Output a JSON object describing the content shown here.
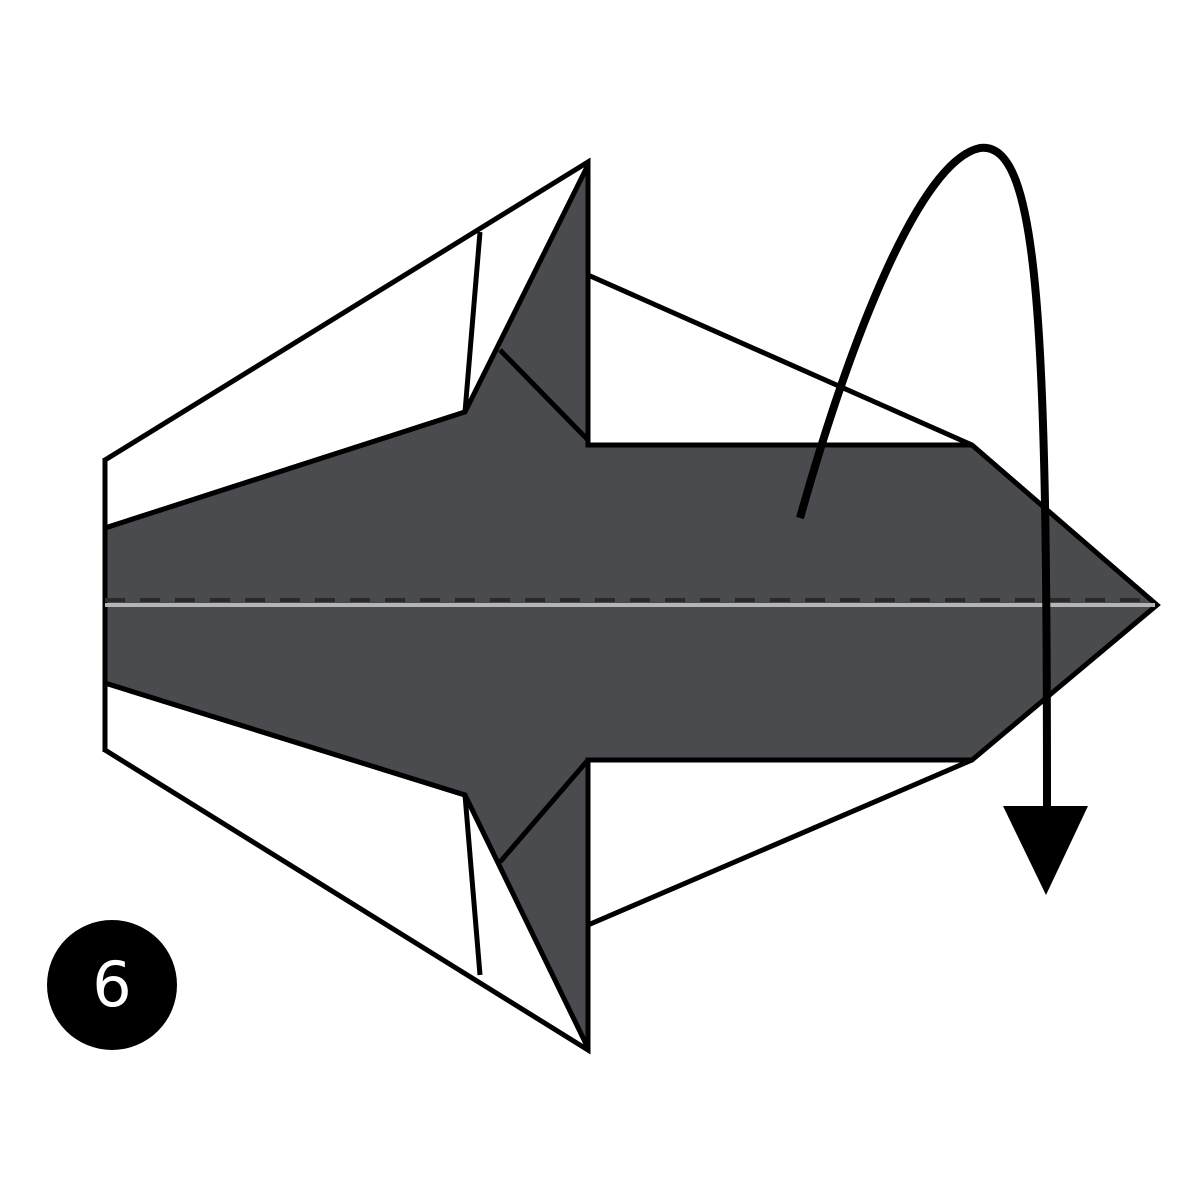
{
  "step": {
    "number": "6"
  },
  "colors": {
    "paper_dark": "#4a4b4e",
    "paper_light": "#ffffff",
    "outline": "#000000",
    "valley_line": "#2a2a2c",
    "crease_highlight": "#b5b5b5"
  },
  "icons": {
    "fold_arrow": "curved-mountain-fold-arrow",
    "step_marker": "numbered-circle"
  }
}
